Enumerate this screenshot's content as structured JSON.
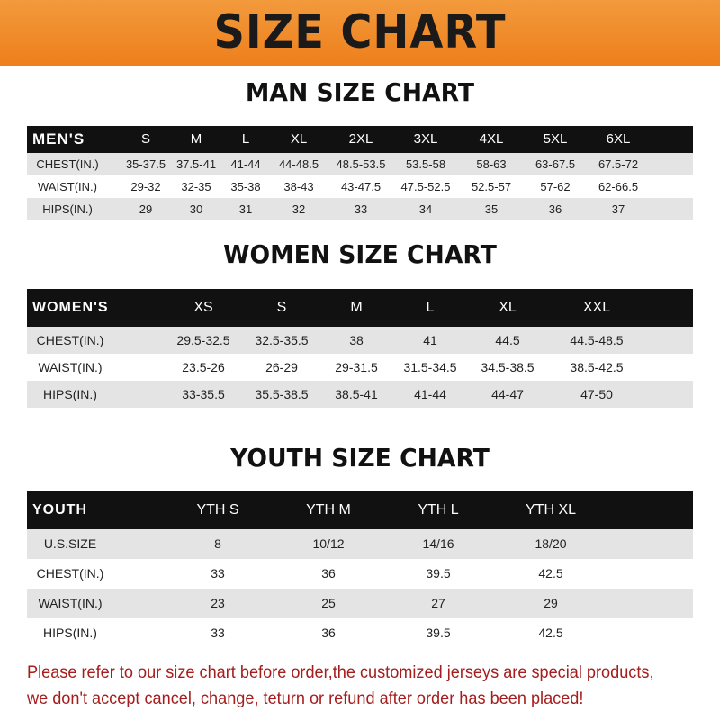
{
  "title": "SIZE CHART",
  "men": {
    "title": "MAN SIZE CHART",
    "header": [
      "MEN'S",
      "S",
      "M",
      "L",
      "XL",
      "2XL",
      "3XL",
      "4XL",
      "5XL",
      "6XL"
    ],
    "rows": [
      [
        "CHEST(IN.)",
        "35-37.5",
        "37.5-41",
        "41-44",
        "44-48.5",
        "48.5-53.5",
        "53.5-58",
        "58-63",
        "63-67.5",
        "67.5-72"
      ],
      [
        "WAIST(IN.)",
        "29-32",
        "32-35",
        "35-38",
        "38-43",
        "43-47.5",
        "47.5-52.5",
        "52.5-57",
        "57-62",
        "62-66.5"
      ],
      [
        "HIPS(IN.)",
        "29",
        "30",
        "31",
        "32",
        "33",
        "34",
        "35",
        "36",
        "37"
      ]
    ]
  },
  "women": {
    "title": "WOMEN SIZE CHART",
    "header": [
      "WOMEN'S",
      "XS",
      "S",
      "M",
      "L",
      "XL",
      "XXL"
    ],
    "rows": [
      [
        "CHEST(IN.)",
        "29.5-32.5",
        "32.5-35.5",
        "38",
        "41",
        "44.5",
        "44.5-48.5"
      ],
      [
        "WAIST(IN.)",
        "23.5-26",
        "26-29",
        "29-31.5",
        "31.5-34.5",
        "34.5-38.5",
        "38.5-42.5"
      ],
      [
        "HIPS(IN.)",
        "33-35.5",
        "35.5-38.5",
        "38.5-41",
        "41-44",
        "44-47",
        "47-50"
      ]
    ]
  },
  "youth": {
    "title": "YOUTH SIZE CHART",
    "header": [
      "YOUTH",
      "YTH S",
      "YTH M",
      "YTH L",
      "YTH XL"
    ],
    "rows": [
      [
        "U.S.SIZE",
        "8",
        "10/12",
        "14/16",
        "18/20"
      ],
      [
        "CHEST(IN.)",
        "33",
        "36",
        "39.5",
        "42.5"
      ],
      [
        "WAIST(IN.)",
        "23",
        "25",
        "27",
        "29"
      ],
      [
        "HIPS(IN.)",
        "33",
        "36",
        "39.5",
        "42.5"
      ]
    ]
  },
  "notice": [
    "Please refer to our size chart before order,the customized jerseys are special products,",
    "we don't accept cancel, change, teturn or refund after order has been placed!"
  ],
  "colors": {
    "banner": "#ef8a2a",
    "header_bg": "#111111",
    "stripe": "#e4e4e4",
    "notice": "#a51d1d"
  }
}
